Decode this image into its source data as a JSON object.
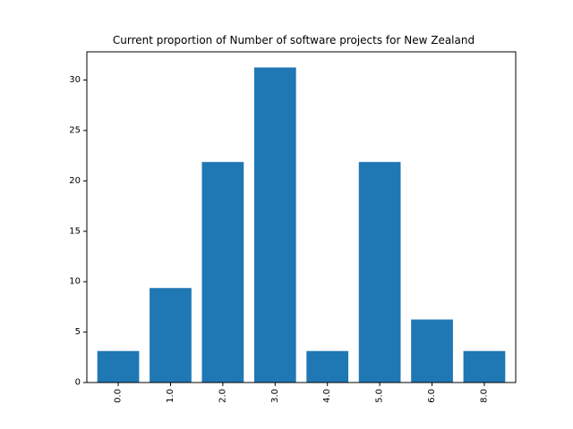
{
  "chart_data": {
    "type": "bar",
    "title": "Current proportion of Number of software projects for New Zealand",
    "xlabel": "",
    "ylabel": "",
    "categories": [
      "0.0",
      "1.0",
      "2.0",
      "3.0",
      "4.0",
      "5.0",
      "6.0",
      "8.0"
    ],
    "values": [
      3.125,
      9.375,
      21.875,
      31.25,
      3.125,
      21.875,
      6.25,
      3.125
    ],
    "ylim": [
      0,
      32.8
    ],
    "yticks": [
      0,
      5,
      10,
      15,
      20,
      25,
      30
    ],
    "grid": false,
    "legend": "none",
    "x_tick_rotation": 90,
    "bar_color": "#1f77b4"
  }
}
